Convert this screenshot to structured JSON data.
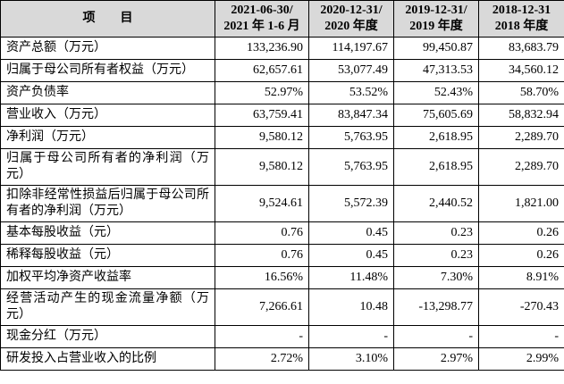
{
  "table": {
    "header": [
      "项　　目",
      "2021-06-30/\n2021 年 1-6 月",
      "2020-12-31/\n2020 年度",
      "2019-12-31/\n2019 年度",
      "2018-12-31\n2018 年度"
    ],
    "rows": [
      [
        "资产总额（万元）",
        "133,236.90",
        "114,197.67",
        "99,450.87",
        "83,683.79"
      ],
      [
        "归属于母公司所有者权益（万元）",
        "62,657.61",
        "53,077.49",
        "47,313.53",
        "34,560.12"
      ],
      [
        "资产负债率",
        "52.97%",
        "53.52%",
        "52.43%",
        "58.70%"
      ],
      [
        "营业收入（万元）",
        "63,759.41",
        "83,847.34",
        "75,605.69",
        "58,832.94"
      ],
      [
        "净利润（万元）",
        "9,580.12",
        "5,763.95",
        "2,618.95",
        "2,289.70"
      ],
      [
        "归属于母公司所有者的净利润（万元）",
        "9,580.12",
        "5,763.95",
        "2,618.95",
        "2,289.70"
      ],
      [
        "扣除非经常性损益后归属于母公司所有者的净利润（万元）",
        "9,524.61",
        "5,572.39",
        "2,440.52",
        "1,821.00"
      ],
      [
        "基本每股收益（元）",
        "0.76",
        "0.45",
        "0.23",
        "0.26"
      ],
      [
        "稀释每股收益（元）",
        "0.76",
        "0.45",
        "0.23",
        "0.26"
      ],
      [
        "加权平均净资产收益率",
        "16.56%",
        "11.48%",
        "7.30%",
        "8.91%"
      ],
      [
        "经营活动产生的现金流量净额（万元）",
        "7,266.61",
        "10.48",
        "-13,298.77",
        "-270.43"
      ],
      [
        "现金分红（万元）",
        "-",
        "-",
        "-",
        "-"
      ],
      [
        "研发投入占营业收入的比例",
        "2.72%",
        "3.10%",
        "2.97%",
        "2.99%"
      ]
    ]
  }
}
